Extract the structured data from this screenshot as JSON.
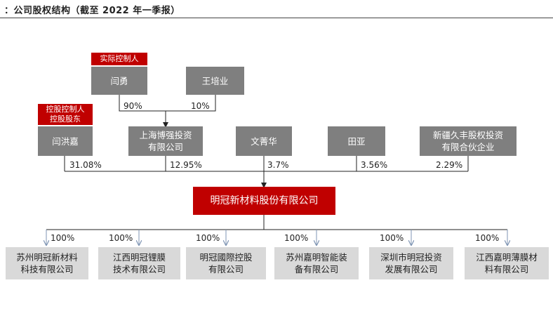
{
  "title": "：公司股权结构（截至 2022 年一季报）",
  "tags": {
    "actual_controller": "实际控制人",
    "controlling": "控股控制人\n控股股东"
  },
  "persons": {
    "yan_yong": "闫勇",
    "wang_peiye": "王培业",
    "yan_hongjia": "闫洪嘉",
    "shanghai_bq": "上海博强投资\n有限公司",
    "wen_qinghua": "文菁华",
    "tian_ya": "田亚",
    "xinjiang": "新疆久丰股权投资\n有限合伙企业"
  },
  "upper_pcts": {
    "yan_yong": "90%",
    "wang_peiye": "10%"
  },
  "shareholder_pcts": {
    "yan_hongjia": "31.08%",
    "shanghai_bq": "12.95%",
    "wen_qinghua": "3.7%",
    "tian_ya": "3.56%",
    "xinjiang": "2.29%"
  },
  "company": "明冠新材料股份有限公司",
  "subsidiaries": [
    {
      "name": "苏州明冠新材料\n科技有限公司",
      "pct": "100%"
    },
    {
      "name": "江西明冠锂膜\n技术有限公司",
      "pct": "100%"
    },
    {
      "name": "明冠國際控股\n有限公司",
      "pct": "100%"
    },
    {
      "name": "苏州嘉明智能装\n备有限公司",
      "pct": "100%"
    },
    {
      "name": "深圳市明冠投资\n发展有限公司",
      "pct": "100%"
    },
    {
      "name": "江西嘉明薄膜材\n料有限公司",
      "pct": "100%"
    }
  ]
}
